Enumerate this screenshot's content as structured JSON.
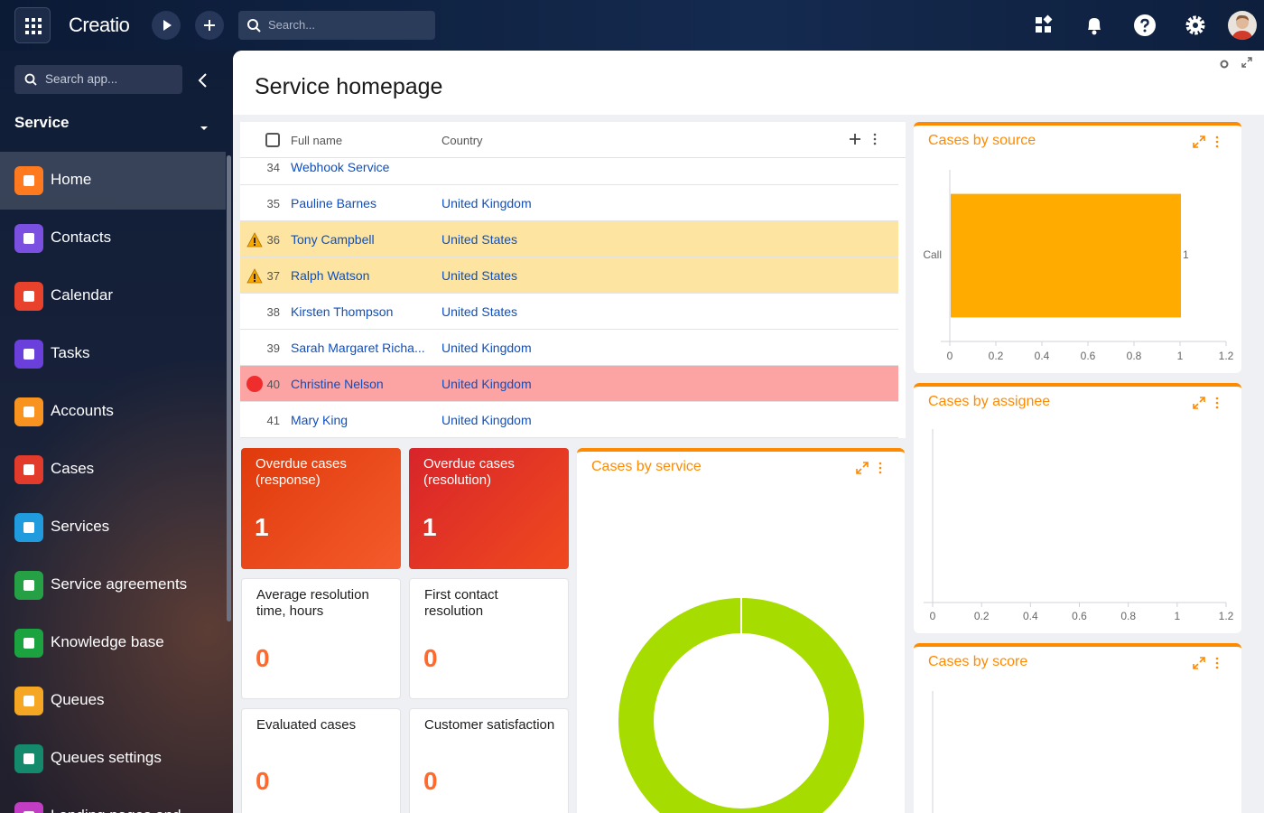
{
  "topbar": {
    "brand": "Creatio",
    "search_placeholder": "Search..."
  },
  "sidebar": {
    "search_placeholder": "Search app...",
    "workspace": "Service",
    "items": [
      {
        "label": "Home",
        "color": "#ff7a1f",
        "active": true
      },
      {
        "label": "Contacts",
        "color": "#7b4fe0"
      },
      {
        "label": "Calendar",
        "color": "#e8412c"
      },
      {
        "label": "Tasks",
        "color": "#6a3fdc"
      },
      {
        "label": "Accounts",
        "color": "#f7931e"
      },
      {
        "label": "Cases",
        "color": "#e23b2c"
      },
      {
        "label": "Services",
        "color": "#1f9bde"
      },
      {
        "label": "Service agreements",
        "color": "#26a044"
      },
      {
        "label": "Knowledge base",
        "color": "#1aa33f"
      },
      {
        "label": "Queues",
        "color": "#f5a623"
      },
      {
        "label": "Queues settings",
        "color": "#14896b"
      },
      {
        "label": "Landing pages and",
        "color": "#c13ec4"
      }
    ]
  },
  "page": {
    "title": "Service homepage"
  },
  "table": {
    "columns": [
      "Full name",
      "Country"
    ],
    "rows": [
      {
        "number": 34,
        "name": "Webhook Service"
      },
      {
        "number": 35,
        "name": "Pauline Barnes",
        "country": "United Kingdom"
      },
      {
        "number": 36,
        "name": "Tony Campbell",
        "country": "United States",
        "status": "warning"
      },
      {
        "number": 37,
        "name": "Ralph Watson",
        "country": "United States",
        "status": "warning"
      },
      {
        "number": 38,
        "name": "Kirsten Thompson",
        "country": "United States"
      },
      {
        "number": 39,
        "name": "Sarah Margaret Richa...",
        "country": "United Kingdom"
      },
      {
        "number": 40,
        "name": "Christine Nelson",
        "country": "United Kingdom",
        "status": "error"
      },
      {
        "number": 41,
        "name": "Mary King",
        "country": "United Kingdom"
      }
    ]
  },
  "metrics": [
    {
      "label": "Overdue cases (response)",
      "value": 1,
      "style": "alert"
    },
    {
      "label": "Overdue cases (resolution)",
      "value": 1,
      "style": "alert-dark"
    },
    {
      "label": "Average resolution time, hours",
      "value": 0
    },
    {
      "label": "First contact resolution",
      "value": 0
    },
    {
      "label": "Evaluated cases",
      "value": 0
    },
    {
      "label": "Customer satisfaction",
      "value": 0
    }
  ],
  "chart_data": [
    {
      "type": "bar",
      "orientation": "horizontal",
      "title": "Cases by source",
      "categories": [
        "Call"
      ],
      "values": [
        1
      ],
      "color": "#ffab00",
      "xlim": [
        0,
        1.2
      ],
      "xticks": [
        0,
        0.2,
        0.4,
        0.6,
        0.8,
        1,
        1.2
      ]
    },
    {
      "type": "bar",
      "orientation": "horizontal",
      "title": "Cases by assignee",
      "categories": [],
      "values": [],
      "color": "#ffab00",
      "xlim": [
        0,
        1.2
      ],
      "xticks": [
        0,
        0.2,
        0.4,
        0.6,
        0.8,
        1,
        1.2
      ]
    },
    {
      "type": "bar",
      "orientation": "horizontal",
      "title": "Cases by score",
      "categories": [],
      "values": [],
      "color": "#ffab00"
    },
    {
      "type": "doughnut",
      "title": "Cases by service",
      "values": [
        1
      ],
      "color": "#a6dc00"
    }
  ]
}
